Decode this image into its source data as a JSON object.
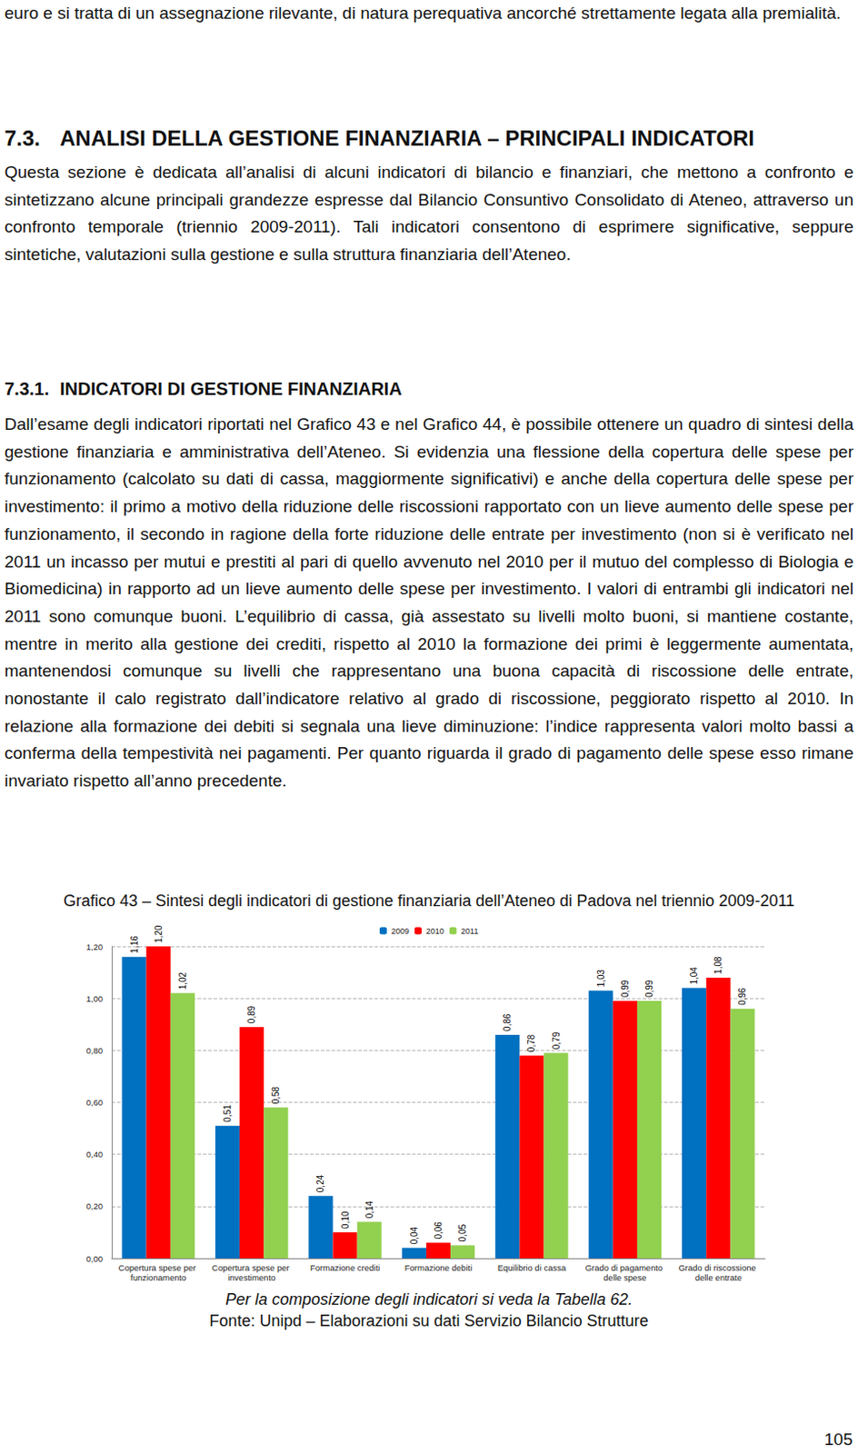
{
  "page": {
    "intro": "euro e si tratta di un assegnazione rilevante, di natura perequativa ancorché strettamente legata alla premialità.",
    "section": {
      "number": "7.3.",
      "title": "ANALISI DELLA GESTIONE FINANZIARIA – PRINCIPALI INDICATORI"
    },
    "paragraph1": "Questa sezione è dedicata all’analisi di alcuni indicatori di bilancio e finanziari, che mettono a confronto e sintetizzano alcune principali grandezze espresse dal Bilancio Consuntivo Consolidato di Ateneo, attraverso un confronto temporale (triennio 2009-2011). Tali indicatori consentono di esprimere significative, seppure sintetiche, valutazioni sulla gestione e sulla struttura finanziaria dell’Ateneo.",
    "subsection": {
      "number": "7.3.1.",
      "title": "INDICATORI DI GESTIONE FINANZIARIA"
    },
    "paragraph2": "Dall’esame degli indicatori riportati nel Grafico 43 e nel Grafico 44, è possibile ottenere un quadro di sintesi della gestione finanziaria e amministrativa dell’Ateneo. Si evidenzia una flessione della copertura delle spese per funzionamento (calcolato su dati di cassa, maggiormente significativi) e anche della copertura delle spese per investimento: il primo a motivo della riduzione delle riscossioni rapportato con un lieve aumento delle spese per funzionamento, il secondo in ragione della forte riduzione delle entrate per investimento (non si è verificato nel 2011 un incasso per mutui e prestiti al pari di quello avvenuto nel 2010 per il mutuo del complesso di Biologia e Biomedicina) in rapporto ad un lieve aumento delle spese per investimento. I valori di entrambi gli indicatori nel 2011 sono comunque buoni. L’equilibrio di cassa, già assestato su livelli molto buoni, si mantiene costante, mentre in merito alla gestione dei crediti, rispetto al 2010 la formazione dei primi è leggermente aumentata, mantenendosi comunque su livelli che rappresentano una buona capacità di riscossione delle entrate, nonostante il calo registrato dall’indicatore relativo al grado di riscossione, peggiorato rispetto al 2010. In relazione alla formazione dei debiti si segnala una lieve diminuzione: l’indice rappresenta valori molto bassi a conferma della tempestività nei pagamenti. Per quanto riguarda il grado di pagamento delle spese esso rimane invariato rispetto all’anno precedente.",
    "notes": [
      "Per la composizione degli indicatori si veda la Tabella 62.",
      "Fonte: Unipd – Elaborazioni su dati Servizio Bilancio Strutture"
    ],
    "page_number": "105"
  },
  "chart_data": {
    "type": "bar",
    "title": "Grafico 43 – Sintesi degli indicatori di gestione finanziaria dell’Ateneo di Padova nel triennio 2009-2011",
    "categories": [
      "Copertura spese per funzionamento",
      "Copertura spese per investimento",
      "Formazione crediti",
      "Formazione debiti",
      "Equilibrio di cassa",
      "Grado di pagamento delle spese",
      "Grado di riscossione delle entrate"
    ],
    "series": [
      {
        "name": "2009",
        "color": "#0070c0",
        "values": [
          1.16,
          0.51,
          0.24,
          0.04,
          0.86,
          1.03,
          1.04
        ],
        "value_labels": [
          "1,16",
          "0,51",
          "0,24",
          "0,04",
          "0,86",
          "1,03",
          "1,04"
        ]
      },
      {
        "name": "2010",
        "color": "#ff0000",
        "values": [
          1.2,
          0.89,
          0.1,
          0.06,
          0.78,
          0.99,
          1.08
        ],
        "value_labels": [
          "1,20",
          "0,89",
          "0,10",
          "0,06",
          "0,78",
          "0,99",
          "1,08"
        ]
      },
      {
        "name": "2011",
        "color": "#92d050",
        "values": [
          1.02,
          0.58,
          0.14,
          0.05,
          0.79,
          0.99,
          0.96
        ],
        "value_labels": [
          "1,02",
          "0,58",
          "0,14",
          "0,05",
          "0,79",
          "0,99",
          "0,96"
        ]
      }
    ],
    "ylim": [
      0,
      1.2
    ],
    "yticks": [
      {
        "value": 0,
        "label": "0,00"
      },
      {
        "value": 0.2,
        "label": "0,20"
      },
      {
        "value": 0.4,
        "label": "0,40"
      },
      {
        "value": 0.6,
        "label": "0,60"
      },
      {
        "value": 0.8,
        "label": "0,80"
      },
      {
        "value": 1.0,
        "label": "1,00"
      },
      {
        "value": 1.2,
        "label": "1,20"
      }
    ],
    "grid": true,
    "legend": "top",
    "data_labels": true
  }
}
